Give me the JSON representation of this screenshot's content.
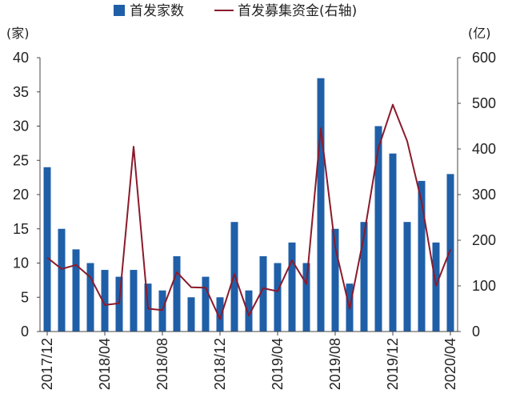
{
  "chart_data": {
    "type": "bar",
    "legend": {
      "placement": "top",
      "items": [
        {
          "label": "首发家数",
          "kind": "bar"
        },
        {
          "label": "首发募集资金(右轴)",
          "kind": "line"
        }
      ]
    },
    "y_left_unit": "(家)",
    "y_right_unit": "(亿)",
    "ylim_left": [
      0,
      40
    ],
    "ylim_right": [
      0,
      600
    ],
    "yticks_left": [
      "0",
      "5",
      "10",
      "15",
      "20",
      "25",
      "30",
      "35",
      "40"
    ],
    "yticks_right": [
      "0",
      "100",
      "200",
      "300",
      "400",
      "500",
      "600"
    ],
    "x_tick_labels": [
      {
        "index": 0,
        "label": "2017/12"
      },
      {
        "index": 4,
        "label": "2018/04"
      },
      {
        "index": 8,
        "label": "2018/08"
      },
      {
        "index": 12,
        "label": "2018/12"
      },
      {
        "index": 16,
        "label": "2019/04"
      },
      {
        "index": 20,
        "label": "2019/08"
      },
      {
        "index": 24,
        "label": "2019/12"
      },
      {
        "index": 28,
        "label": "2020/04"
      }
    ],
    "categories": [
      "2017/12",
      "2018/01",
      "2018/02",
      "2018/03",
      "2018/04",
      "2018/05",
      "2018/06",
      "2018/07",
      "2018/08",
      "2018/09",
      "2018/10",
      "2018/11",
      "2018/12",
      "2019/01",
      "2019/02",
      "2019/03",
      "2019/04",
      "2019/05",
      "2019/06",
      "2019/07",
      "2019/08",
      "2019/09",
      "2019/10",
      "2019/11",
      "2019/12",
      "2020/01",
      "2020/02",
      "2020/03",
      "2020/04"
    ],
    "series": [
      {
        "name": "首发家数",
        "type": "bar",
        "axis": "left",
        "color": "#1f5fa8",
        "values": [
          24,
          15,
          12,
          10,
          9,
          8,
          9,
          7,
          6,
          11,
          5,
          8,
          5,
          16,
          6,
          11,
          10,
          13,
          10,
          37,
          15,
          7,
          16,
          30,
          26,
          16,
          22,
          13,
          23
        ]
      },
      {
        "name": "首发募集资金(右轴)",
        "type": "line",
        "axis": "right",
        "color": "#8b1a2b",
        "values": [
          162,
          137,
          146,
          119,
          58,
          62,
          405,
          50,
          47,
          130,
          97,
          96,
          27,
          126,
          35,
          95,
          88,
          156,
          104,
          445,
          185,
          50,
          210,
          402,
          497,
          417,
          284,
          100,
          180
        ]
      }
    ],
    "grid": false
  }
}
